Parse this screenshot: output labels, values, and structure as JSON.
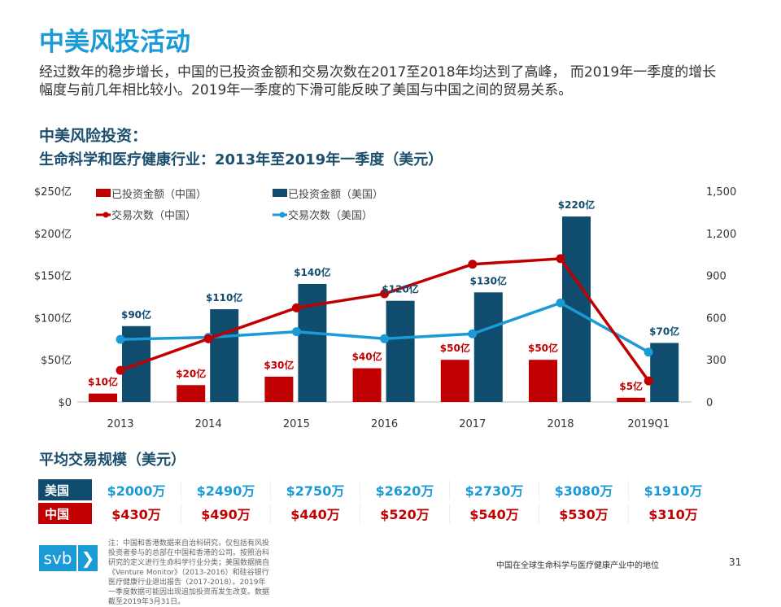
{
  "title": "中美风投活动",
  "intro": "经过数年的稳步增长，中国的已投资金额和交易次数在2017至2018年均达到了高峰， 而2019年一季度的增长幅度与前几年相比较小。2019年一季度的下滑可能反映了美国与中国之间的贸易关系。",
  "subtitle1": "中美风险投资：",
  "subtitle2": "生命科学和医疗健康行业：2013年至2019年一季度（美元）",
  "colors": {
    "title": "#1a9ad6",
    "heading": "#1c4f6e",
    "china": "#c00000",
    "us_bar": "#0f4c6e",
    "us_line": "#1a9ad6"
  },
  "chart_data": {
    "type": "bar+line",
    "categories": [
      "2013",
      "2014",
      "2015",
      "2016",
      "2017",
      "2018",
      "2019Q1"
    ],
    "left_axis": {
      "ticks": [
        "$0",
        "$50亿",
        "$100亿",
        "$150亿",
        "$200亿",
        "$250亿"
      ],
      "ylim": [
        0,
        250
      ],
      "unit": "亿美元"
    },
    "right_axis": {
      "ticks": [
        "0",
        "300",
        "600",
        "900",
        "1,200",
        "1,500"
      ],
      "ylim": [
        0,
        1500
      ]
    },
    "grid": false,
    "legend_position": "top",
    "series": [
      {
        "name": "已投资金额（中国）",
        "type": "bar",
        "axis": "left",
        "values": [
          10,
          20,
          30,
          40,
          50,
          50,
          5
        ],
        "labels": [
          "$10亿",
          "$20亿",
          "$30亿",
          "$40亿",
          "$50亿",
          "$50亿",
          "$5亿"
        ]
      },
      {
        "name": "已投资金额（美国）",
        "type": "bar",
        "axis": "left",
        "values": [
          90,
          110,
          140,
          120,
          130,
          220,
          70
        ],
        "labels": [
          "$90亿",
          "$110亿",
          "$140亿",
          "$120亿",
          "$130亿",
          "$220亿",
          "$70亿"
        ]
      },
      {
        "name": "交易次数（中国）",
        "type": "line",
        "axis": "right",
        "values": [
          225,
          450,
          670,
          770,
          980,
          1020,
          150
        ]
      },
      {
        "name": "交易次数（美国）",
        "type": "line",
        "axis": "right",
        "values": [
          445,
          460,
          500,
          450,
          485,
          705,
          355
        ]
      }
    ]
  },
  "avg": {
    "title": "平均交易规模（美元）",
    "us_label": "美国",
    "cn_label": "中国",
    "us": [
      "$2000万",
      "$2490万",
      "$2750万",
      "$2620万",
      "$2730万",
      "$3080万",
      "$1910万"
    ],
    "cn": [
      "$430万",
      "$490万",
      "$440万",
      "$520万",
      "$540万",
      "$530万",
      "$310万"
    ]
  },
  "logo": {
    "text": "svb",
    "chevron": "❯"
  },
  "note": "注：中国和香港数据来自治科研究，仅包括有风投投资者参与的总部在中国和香港的公司。按照治科研究的定义进行生命科学行业分类；美国数据摘自《Venture Monitor》（2013-2016）和硅谷银行医疗健康行业退出报告（2017-2018）。2019年一季度数据可能因出现追加投资而发生改变。数据截至2019年3月31日。",
  "footer": "中国在全球生命科学与医疗健康产业中的地位",
  "page_number": "31"
}
